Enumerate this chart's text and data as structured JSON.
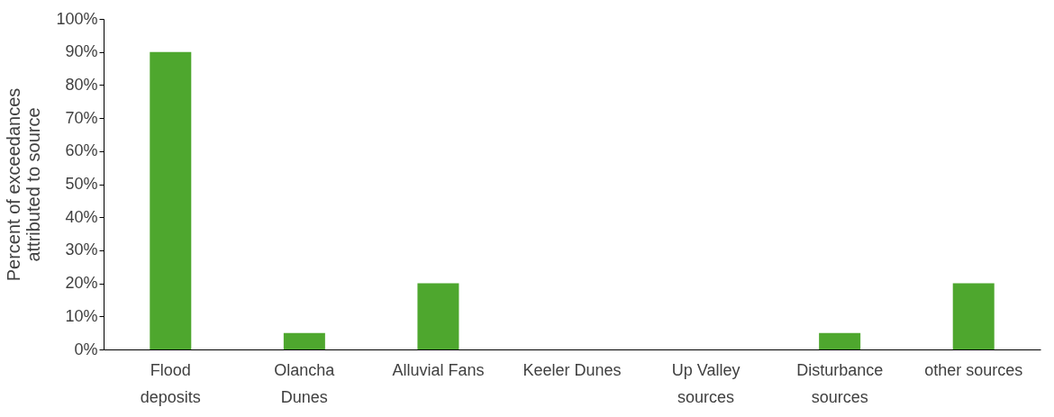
{
  "chart_data": {
    "type": "bar",
    "ylabel": "Percent of exceedances\nattributed to source",
    "categories": [
      "Flood\ndeposits",
      "Olancha\nDunes",
      "Alluvial Fans",
      "Keeler Dunes",
      "Up Valley\nsources",
      "Disturbance\nsources",
      "other sources"
    ],
    "values": [
      90,
      5,
      20,
      0,
      0,
      5,
      20
    ],
    "color": "#4ea72e",
    "ylim": [
      0,
      100
    ],
    "yticks": [
      {
        "value": 0,
        "label": "0%"
      },
      {
        "value": 10,
        "label": "10%"
      },
      {
        "value": 20,
        "label": "20%"
      },
      {
        "value": 30,
        "label": "30%"
      },
      {
        "value": 40,
        "label": "40%"
      },
      {
        "value": 50,
        "label": "50%"
      },
      {
        "value": 60,
        "label": "60%"
      },
      {
        "value": 70,
        "label": "70%"
      },
      {
        "value": 80,
        "label": "80%"
      },
      {
        "value": 90,
        "label": "90%"
      },
      {
        "value": 100,
        "label": "100%"
      }
    ],
    "grid": false
  }
}
